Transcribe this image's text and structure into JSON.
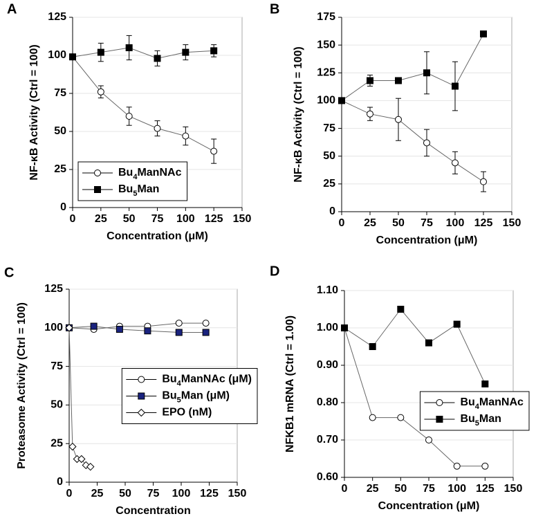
{
  "chart_data": [
    {
      "type": "line",
      "panel": "A",
      "ylabel": "NF-κB Activity (Ctrl = 100)",
      "xlabel": "Concentration (μM)",
      "x": [
        0,
        25,
        50,
        75,
        100,
        125
      ],
      "series": [
        {
          "name": "Bu4ManNAc",
          "marker": "circle",
          "color": "#ffffff",
          "values": [
            99,
            76,
            60,
            52,
            47,
            37
          ],
          "errors": [
            0,
            4,
            6,
            5,
            6,
            8
          ]
        },
        {
          "name": "Bu5Man",
          "marker": "square",
          "color": "#000000",
          "values": [
            99,
            102,
            105,
            98,
            102,
            103
          ],
          "errors": [
            0,
            6,
            8,
            5,
            5,
            4
          ]
        }
      ],
      "xlim": [
        0,
        150
      ],
      "xticks": [
        0,
        25,
        50,
        75,
        100,
        125,
        150
      ],
      "ylim": [
        0,
        125
      ],
      "yticks": [
        0,
        25,
        50,
        75,
        100,
        125
      ],
      "grid": true,
      "legend": "lower left"
    },
    {
      "type": "line",
      "panel": "B",
      "ylabel": "NF-κB Activity (Ctrl = 100)",
      "xlabel": "Concentration (μM)",
      "x": [
        0,
        25,
        50,
        75,
        100,
        125
      ],
      "series": [
        {
          "name": "Bu4ManNAc",
          "marker": "circle",
          "color": "#ffffff",
          "values": [
            100,
            88,
            83,
            62,
            44,
            27
          ],
          "errors": [
            0,
            6,
            19,
            12,
            10,
            9
          ]
        },
        {
          "name": "Bu5Man",
          "marker": "square",
          "color": "#000000",
          "values": [
            100,
            118,
            118,
            125,
            113,
            160
          ],
          "errors": [
            0,
            5,
            2,
            19,
            22,
            1
          ]
        }
      ],
      "xlim": [
        0,
        150
      ],
      "xticks": [
        0,
        25,
        50,
        75,
        100,
        125,
        150
      ],
      "ylim": [
        0,
        175
      ],
      "yticks": [
        0,
        25,
        50,
        75,
        100,
        125,
        150,
        175
      ],
      "grid": true
    },
    {
      "type": "line",
      "panel": "C",
      "ylabel": "Proteasome Activity (Ctrl = 100)",
      "xlabel": "Concentration",
      "series": [
        {
          "name": "Bu4ManNAc (μM)",
          "marker": "circle",
          "color": "#ffffff",
          "x": [
            0,
            22,
            45,
            70,
            98,
            122
          ],
          "values": [
            100,
            99,
            101,
            101,
            103,
            103
          ]
        },
        {
          "name": "Bu5Man (μM)",
          "marker": "square",
          "color": "#1a237e",
          "x": [
            0,
            22,
            45,
            70,
            98,
            122
          ],
          "values": [
            100,
            101,
            99,
            98,
            97,
            97
          ]
        },
        {
          "name": "EPO (nM)",
          "marker": "diamond",
          "color": "#ffffff",
          "x": [
            0,
            3,
            7,
            11,
            15,
            19
          ],
          "values": [
            100,
            23,
            15,
            15,
            11,
            10
          ]
        }
      ],
      "xlim": [
        0,
        150
      ],
      "xticks": [
        0,
        25,
        50,
        75,
        100,
        125,
        150
      ],
      "ylim": [
        0,
        125
      ],
      "yticks": [
        0,
        25,
        50,
        75,
        100,
        125
      ],
      "grid": true,
      "legend": "center right"
    },
    {
      "type": "line",
      "panel": "D",
      "ylabel": "NFKB1 mRNA (Ctrl = 1.00)",
      "xlabel": "Concentration (μM)",
      "x": [
        0,
        25,
        50,
        75,
        100,
        125
      ],
      "series": [
        {
          "name": "Bu4ManNAc",
          "marker": "circle",
          "color": "#ffffff",
          "values": [
            1.0,
            0.76,
            0.76,
            0.7,
            0.63,
            0.63
          ]
        },
        {
          "name": "Bu5Man",
          "marker": "square",
          "color": "#000000",
          "values": [
            1.0,
            0.95,
            1.05,
            0.96,
            1.01,
            0.85
          ]
        }
      ],
      "xlim": [
        0,
        150
      ],
      "xticks": [
        0,
        25,
        50,
        75,
        100,
        125,
        150
      ],
      "ylim": [
        0.6,
        1.1
      ],
      "yticks": [
        {
          "value": 0.6,
          "label": "0.60"
        },
        {
          "value": 0.7,
          "label": "0.70"
        },
        {
          "value": 0.8,
          "label": "0.80"
        },
        {
          "value": 0.9,
          "label": "0.90"
        },
        {
          "value": 1.0,
          "label": "1.00"
        },
        {
          "value": 1.1,
          "label": "1.10"
        }
      ],
      "grid": true,
      "legend": "lower right"
    }
  ]
}
